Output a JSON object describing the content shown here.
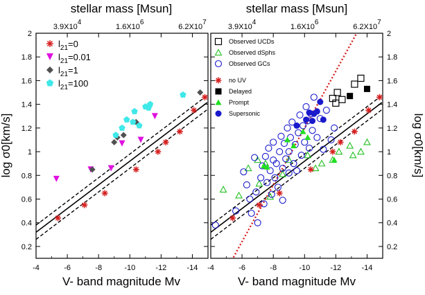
{
  "chart_data": [
    {
      "type": "scatter",
      "xlabel": "V- band magnitude Mv",
      "ylabel": "log σ0[km/s]",
      "top_axis_label": "stellar mass [Msun]",
      "top_axis_ticks": [
        "3.9X10^4",
        "1.6X10^6",
        "6.2X10^7"
      ],
      "x_ticks": [
        "-4",
        "-6",
        "-8",
        "-10",
        "-12",
        "-14"
      ],
      "y_ticks": [
        "0.2",
        "0.4",
        "0.6",
        "0.8",
        "1",
        "1.2",
        "1.4",
        "1.6",
        "1.8",
        "2"
      ],
      "xlim": [
        -4,
        -15
      ],
      "ylim": [
        0.1,
        2.0
      ],
      "legend_position": "top-left",
      "series": [
        {
          "name": "l21=0",
          "marker": "asterisk",
          "color": "#d62020",
          "x": [
            -5.4,
            -7.1,
            -8.4,
            -10.4,
            -11.8,
            -12.3,
            -13.2,
            -14.1,
            -14.8
          ],
          "y": [
            0.44,
            0.55,
            0.65,
            0.85,
            1.0,
            1.08,
            1.17,
            1.35,
            1.46
          ]
        },
        {
          "name": "l21=0.01",
          "marker": "triangle-down",
          "color": "#e010e0",
          "x": [
            -5.3,
            -7.5,
            -8.8,
            -9.5,
            -10.7,
            -11.6
          ],
          "y": [
            0.77,
            0.85,
            0.86,
            1.07,
            1.1,
            1.3
          ]
        },
        {
          "name": "l21=1",
          "marker": "diamond",
          "color": "#505050",
          "x": [
            -7.6,
            -9.0,
            -9.2,
            -9.6,
            -10.4,
            -14.5
          ],
          "y": [
            0.85,
            1.08,
            1.12,
            1.14,
            1.25,
            1.5
          ]
        },
        {
          "name": "l21=100",
          "marker": "pentagon",
          "color": "#40e8e8",
          "x": [
            -9.1,
            -9.5,
            -9.8,
            -10.2,
            -10.3,
            -10.6,
            -11.0,
            -11.2,
            -11.3,
            -13.4
          ],
          "y": [
            1.14,
            1.2,
            1.27,
            1.25,
            1.34,
            1.22,
            1.38,
            1.37,
            1.4,
            1.48
          ]
        }
      ]
    },
    {
      "type": "scatter",
      "xlabel": "V- band magnitude Mv",
      "ylabel": "log σ0[km/s]",
      "top_axis_label": "stellar mass [Msun]",
      "top_axis_ticks": [
        "3.9X10^4",
        "1.6X10^6",
        "6.2X10^7"
      ],
      "x_ticks": [
        "-4",
        "-6",
        "-8",
        "-10",
        "-12",
        "-14"
      ],
      "y_ticks": [
        "0.2",
        "0.4",
        "0.6",
        "0.8",
        "1",
        "1.2",
        "1.4",
        "1.6",
        "1.8",
        "2"
      ],
      "xlim": [
        -4,
        -15
      ],
      "ylim": [
        0.1,
        2.0
      ],
      "legend_position": "top-left",
      "series": [
        {
          "name": "Observed UCDs",
          "marker": "square-open",
          "color": "#000000",
          "x": [
            -11.8,
            -12.0,
            -12.1,
            -12.4,
            -13.2,
            -13.6
          ],
          "y": [
            1.45,
            1.41,
            1.5,
            1.44,
            1.57,
            1.62
          ]
        },
        {
          "name": "Observed dSphs",
          "marker": "triangle-open",
          "color": "#20c020",
          "x": [
            -4.8,
            -5.8,
            -6.4,
            -7.0,
            -7.1,
            -7.5,
            -7.8,
            -8.6,
            -9.0,
            -10.2,
            -10.7,
            -11.1,
            -11.8,
            -12.2,
            -12.9,
            -13.1,
            -13.6,
            -14.0
          ],
          "y": [
            0.68,
            0.63,
            0.86,
            0.93,
            0.73,
            0.9,
            0.62,
            0.81,
            0.93,
            0.97,
            0.86,
            0.9,
            0.93,
            1.0,
            1.05,
            0.97,
            1.0,
            1.08
          ]
        },
        {
          "name": "Observed GCs",
          "marker": "circle-open",
          "color": "#1a1acc",
          "x": [
            -4.3,
            -5.6,
            -6.1,
            -6.3,
            -6.5,
            -6.6,
            -6.8,
            -6.9,
            -7.0,
            -7.2,
            -7.3,
            -7.4,
            -7.5,
            -7.6,
            -7.7,
            -7.8,
            -7.9,
            -8.0,
            -8.0,
            -8.1,
            -8.2,
            -8.3,
            -8.4,
            -8.5,
            -8.6,
            -8.6,
            -8.7,
            -8.8,
            -8.9,
            -9.0,
            -9.0,
            -9.1,
            -9.2,
            -9.3,
            -9.4,
            -9.5,
            -9.6,
            -9.7,
            -9.8,
            -9.9,
            -10.0,
            -10.1,
            -10.2,
            -10.3,
            -10.4,
            -10.5,
            -10.6,
            -10.8,
            -11.0,
            -11.2,
            -11.4,
            -11.7,
            -11.9
          ],
          "y": [
            0.38,
            0.5,
            0.83,
            0.72,
            0.6,
            0.48,
            0.95,
            0.66,
            0.4,
            0.78,
            0.88,
            0.56,
            0.96,
            0.74,
            1.03,
            0.84,
            0.64,
            0.93,
            1.08,
            0.78,
            0.9,
            0.7,
            1.0,
            1.13,
            0.86,
            0.59,
            1.07,
            0.94,
            1.2,
            0.82,
            1.0,
            1.12,
            1.25,
            0.9,
            1.06,
            0.84,
            1.16,
            1.31,
            0.97,
            1.22,
            1.08,
            1.38,
            1.26,
            1.03,
            1.32,
            1.18,
            1.46,
            1.12,
            1.28,
            1.02,
            1.35,
            1.1,
            1.2
          ]
        },
        {
          "name": "no UV",
          "marker": "asterisk",
          "color": "#d62020",
          "x": [
            -5.4,
            -7.1,
            -8.4,
            -10.4,
            -11.8,
            -12.3,
            -13.2,
            -14.1,
            -14.8
          ],
          "y": [
            0.44,
            0.55,
            0.65,
            0.85,
            1.0,
            1.08,
            1.17,
            1.35,
            1.46
          ]
        },
        {
          "name": "Delayed",
          "marker": "square-filled",
          "color": "#000000",
          "x": [
            -12.9,
            -14.0
          ],
          "y": [
            1.47,
            1.53
          ]
        },
        {
          "name": "Prompt",
          "marker": "triangle-filled",
          "color": "#20e020",
          "x": [
            -7.4,
            -7.6,
            -8.9,
            -9.3,
            -9.9,
            -10.2,
            -11.9
          ],
          "y": [
            0.88,
            0.87,
            1.1,
            1.05,
            1.17,
            1.12,
            0.93
          ]
        },
        {
          "name": "Supersonic",
          "marker": "circle-filled",
          "color": "#1a1acc",
          "x": [
            -9.5,
            -10.1,
            -10.3,
            -10.5,
            -10.6,
            -10.8,
            -11.0,
            -11.2
          ],
          "y": [
            1.22,
            1.27,
            1.33,
            1.26,
            1.32,
            1.34,
            1.42,
            1.27
          ]
        }
      ]
    }
  ],
  "colors": {
    "red": "#d62020",
    "magenta": "#e010e0",
    "gray": "#505050",
    "cyan": "#40e8e8",
    "blue": "#1a1acc",
    "green": "#20c020",
    "dotted": "#d62020"
  }
}
